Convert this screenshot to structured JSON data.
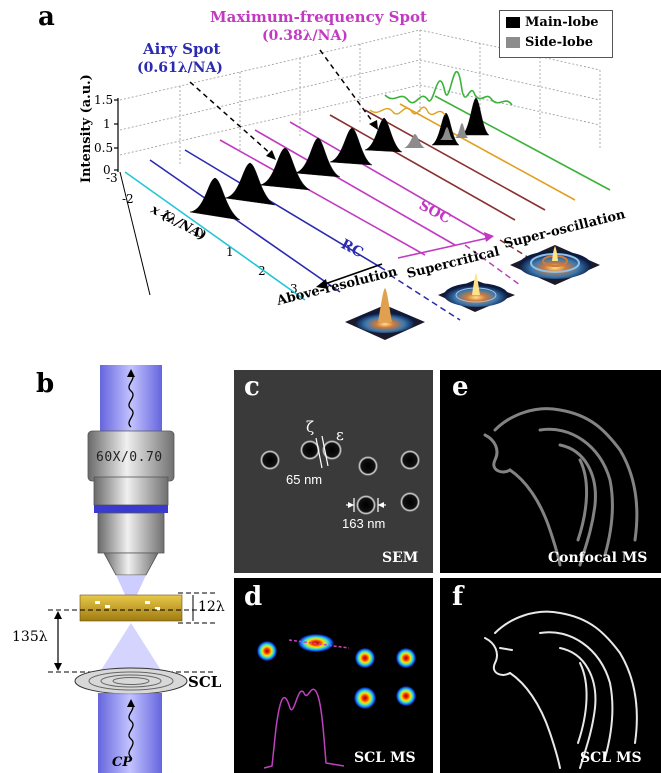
{
  "panels": {
    "a": "a",
    "b": "b",
    "c": "c",
    "d": "d",
    "e": "e",
    "f": "f"
  },
  "panel_a": {
    "airy_title": "Airy Spot",
    "airy_value": "(0.61λ/NA)",
    "maxfreq_title": "Maximum-frequency Spot",
    "maxfreq_value": "(0.38λ/NA)",
    "legend_main": "Main-lobe",
    "legend_side": "Side-lobe",
    "ylabel": "Intensity (a.u.)",
    "yticks": [
      "1.5",
      "1",
      "0.5",
      "0"
    ],
    "xlabel": "x (λ/NA)",
    "xticks": [
      "-3",
      "-2",
      "-1",
      "0",
      "1",
      "2",
      "3"
    ],
    "rc": "RC",
    "soc": "SOC",
    "above_resolution": "Above-resolution",
    "supercritical": "Supercritical",
    "superoscillation": "Super-oscillation",
    "colors": {
      "main_lobe": "#000000",
      "side_lobe": "#8c8c8c",
      "rc": "#2b2bb0",
      "soc": "#c23ac2",
      "cyan": "#22c6d6",
      "green": "#3bb33b",
      "orange": "#e0a020",
      "brown": "#8a3030"
    }
  },
  "panel_b": {
    "objective": "60X/0.70",
    "gap_label": "12λ",
    "distance_label": "135λ",
    "scl_label": "SCL",
    "cp_label": "CP"
  },
  "panel_c": {
    "zeta": "ζ",
    "epsilon": "ε",
    "gap_65": "65 nm",
    "gap_163": "163 nm",
    "caption": "SEM"
  },
  "panel_d": {
    "caption": "SCL MS"
  },
  "panel_e": {
    "caption": "Confocal MS"
  },
  "panel_f": {
    "caption": "SCL MS"
  }
}
